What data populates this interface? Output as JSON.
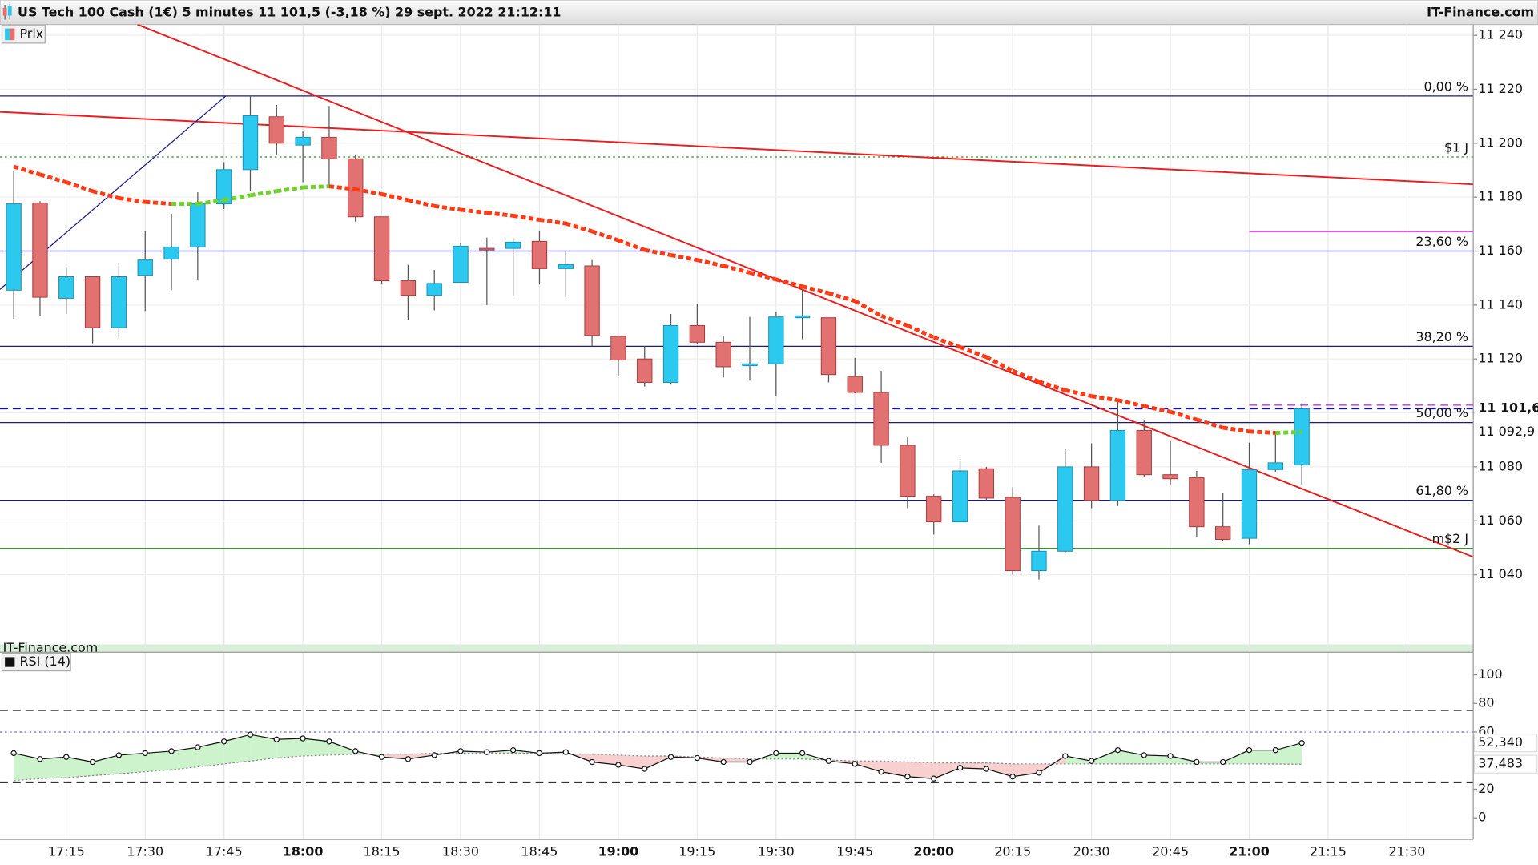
{
  "header": {
    "title": "US Tech 100 Cash (1€) 5 minutes 11 101,5 (-3,18 %) 29 sept. 2022 21:12:11",
    "brand": "IT-Finance.com"
  },
  "chart_data": [
    {
      "type": "candlestick",
      "watermark": "IT-Finance.com",
      "ylim": [
        11014.2,
        11244
      ],
      "yticks": [
        {
          "value": 11040,
          "label": "11 040"
        },
        {
          "value": 11060,
          "label": "11 060"
        },
        {
          "value": 11080,
          "label": "11 080"
        },
        {
          "value": 11100,
          "label": "11 100"
        },
        {
          "value": 11120,
          "label": "11 120"
        },
        {
          "value": 11140,
          "label": "11 140"
        },
        {
          "value": 11160,
          "label": "11 160"
        },
        {
          "value": 11180,
          "label": "11 180"
        },
        {
          "value": 11200,
          "label": "11 200"
        },
        {
          "value": 11220,
          "label": "11 220"
        },
        {
          "value": 11240,
          "label": "11 240"
        }
      ],
      "grid": true,
      "series": [
        {
          "name": "Prix",
          "up_color": "#2bc9ef",
          "down_color": "#e27272",
          "open": [
            11145.5,
            11177.8,
            11142.5,
            11150.5,
            11131.6,
            11151.0,
            11157.0,
            11161.5,
            11177.5,
            11190.2,
            11209.8,
            11199.3,
            11202.2,
            11194.2,
            11172.7,
            11149.0,
            11143.6,
            11148.4,
            11161.0,
            11161.0,
            11163.6,
            11153.5,
            11154.5,
            11128.4,
            11120.0,
            11111.3,
            11132.4,
            11126.2,
            11117.5,
            11118.2,
            11135.3,
            11135.3,
            11113.5,
            11107.6,
            11088.0,
            11069.1,
            11059.6,
            11079.3,
            11068.7,
            11041.5,
            11048.7,
            11080.0,
            11067.6,
            11093.5,
            11077.1,
            11076.0,
            11057.8,
            11053.5,
            11079.0,
            11080.7
          ],
          "high": [
            11189.5,
            11178.5,
            11154.0,
            11150.5,
            11155.6,
            11167.3,
            11173.8,
            11181.8,
            11193.0,
            11217.5,
            11214.2,
            11204.7,
            11213.8,
            11195.6,
            11172.7,
            11154.9,
            11153.0,
            11162.9,
            11165.0,
            11164.7,
            11167.6,
            11160.0,
            11156.7,
            11128.7,
            11124.7,
            11136.7,
            11140.4,
            11128.7,
            11135.6,
            11137.5,
            11145.5,
            11135.3,
            11120.4,
            11115.6,
            11090.9,
            11069.8,
            11082.9,
            11080.0,
            11072.4,
            11058.2,
            11086.5,
            11088.7,
            11104.7,
            11097.5,
            11089.8,
            11078.5,
            11070.2,
            11089.0,
            11093.0,
            11103.6
          ],
          "low": [
            11134.9,
            11136.0,
            11136.7,
            11125.8,
            11127.6,
            11137.8,
            11145.5,
            11149.5,
            11175.6,
            11182.2,
            11195.6,
            11185.5,
            11184.0,
            11170.9,
            11148.0,
            11134.5,
            11138.0,
            11148.4,
            11140.0,
            11143.3,
            11147.6,
            11143.0,
            11124.7,
            11113.5,
            11109.8,
            11110.5,
            11125.5,
            11113.1,
            11112.0,
            11106.2,
            11127.3,
            11111.3,
            11107.3,
            11081.5,
            11064.7,
            11054.9,
            11059.6,
            11067.6,
            11040.0,
            11038.2,
            11048.0,
            11064.7,
            11065.5,
            11076.4,
            11073.5,
            11053.8,
            11052.7,
            11051.3,
            11078.2,
            11073.5
          ],
          "close": [
            11177.5,
            11142.9,
            11150.5,
            11131.6,
            11150.5,
            11156.7,
            11161.5,
            11177.5,
            11190.2,
            11210.2,
            11200.0,
            11202.2,
            11194.2,
            11172.7,
            11149.0,
            11143.6,
            11148.0,
            11161.8,
            11160.4,
            11163.3,
            11153.5,
            11155.0,
            11128.7,
            11119.6,
            11111.3,
            11132.4,
            11126.2,
            11117.1,
            11118.2,
            11135.6,
            11136.0,
            11114.2,
            11107.6,
            11088.0,
            11069.1,
            11059.6,
            11078.5,
            11068.4,
            11041.5,
            11048.7,
            11080.0,
            11067.6,
            11093.5,
            11077.1,
            11075.6,
            11057.8,
            11053.1,
            11078.9,
            11081.5,
            11101.5
          ]
        },
        {
          "color_down": "#ff3a14",
          "color_up": "#6fd12a",
          "values": [
            11191.3,
            11188.4,
            11185.5,
            11182.2,
            11179.6,
            11178.2,
            11177.5,
            11177.5,
            11178.9,
            11180.7,
            11182.2,
            11183.6,
            11184.0,
            11182.9,
            11181.1,
            11178.9,
            11176.7,
            11175.3,
            11174.2,
            11173.1,
            11171.6,
            11170.2,
            11167.3,
            11164.0,
            11160.4,
            11158.5,
            11156.7,
            11154.5,
            11152.0,
            11149.5,
            11146.9,
            11144.4,
            11141.5,
            11136.0,
            11132.4,
            11128.0,
            11124.4,
            11120.7,
            11115.6,
            11111.6,
            11108.4,
            11106.2,
            11104.7,
            11102.5,
            11100.4,
            11097.5,
            11094.5,
            11093.1,
            11092.6,
            11092.9
          ]
        }
      ],
      "levels": [
        {
          "label": "0,00 %",
          "value": 11217.5,
          "color": "#1a1a80",
          "style": "solid"
        },
        {
          "label": "$1 J",
          "value": 11194.9,
          "color": "#228822",
          "style": "dotted"
        },
        {
          "label": "23,60 %",
          "value": 11160.0,
          "color": "#1a1a80",
          "style": "solid"
        },
        {
          "label": "38,20 %",
          "value": 11124.7,
          "color": "#1a1a80",
          "style": "solid"
        },
        {
          "label": "50,00 %",
          "value": 11096.4,
          "color": "#1a1a80",
          "style": "solid"
        },
        {
          "label": "61,80 %",
          "value": 11067.6,
          "color": "#1a1a80",
          "style": "solid"
        },
        {
          "label": "m$2 J",
          "value": 11049.8,
          "color": "#2a9a2a",
          "style": "solid"
        }
      ],
      "short_levels": [
        {
          "value": 11167.3,
          "color": "#cc22cc",
          "style": "solid"
        },
        {
          "value": 11102.9,
          "color": "#dd44ee",
          "style": "dashed"
        }
      ],
      "price_tags": [
        {
          "value": 11101.6,
          "label": "11 101,6",
          "color": "#0a0ad0",
          "line": "dashed"
        },
        {
          "value": 11092.9,
          "label": "11 092,9",
          "color": "#66c21a"
        }
      ]
    },
    {
      "type": "line",
      "categories": [
        null,
        null,
        "17:15",
        null,
        null,
        "17:30",
        null,
        null,
        "17:45",
        null,
        null,
        "18:00",
        null,
        null,
        "18:15",
        null,
        null,
        "18:30",
        null,
        null,
        "18:45",
        null,
        null,
        "19:00",
        null,
        null,
        "19:15",
        null,
        null,
        "19:30",
        null,
        null,
        "19:45",
        null,
        null,
        "20:00",
        null,
        null,
        "20:15",
        null,
        null,
        "20:30",
        null,
        null,
        "20:45",
        null,
        null,
        "21:00",
        null,
        null
      ],
      "xticks_beyond": [
        "21:15",
        "21:30"
      ],
      "ylim": [
        -15.1,
        115.8
      ],
      "yticks": [
        0,
        20,
        60,
        80,
        100
      ],
      "fill_above": "#cdf3cd",
      "fill_below": "#f8d0d0",
      "series": [
        {
          "name": "RSI (14)",
          "color": "#111111",
          "values": [
            45.2,
            41.1,
            42.5,
            39.0,
            43.8,
            45.2,
            46.6,
            49.3,
            53.4,
            58.2,
            54.8,
            55.5,
            53.4,
            46.6,
            42.5,
            41.1,
            43.8,
            46.6,
            45.9,
            47.3,
            45.2,
            45.9,
            39.0,
            37.0,
            34.2,
            42.5,
            41.8,
            39.0,
            39.0,
            45.2,
            45.2,
            39.7,
            37.7,
            32.2,
            28.8,
            27.4,
            34.9,
            34.2,
            28.8,
            31.5,
            43.2,
            39.7,
            47.3,
            43.8,
            43.2,
            39.0,
            39.0,
            47.3,
            47.3,
            52.34
          ]
        },
        {
          "color": "#888888",
          "values": [
            26.0,
            27.4,
            28.1,
            29.5,
            30.8,
            32.2,
            33.6,
            35.6,
            37.7,
            39.7,
            41.8,
            43.2,
            43.8,
            44.5,
            44.5,
            44.5,
            45.2,
            45.2,
            45.2,
            45.2,
            45.2,
            44.5,
            44.5,
            43.8,
            43.2,
            43.2,
            42.5,
            41.8,
            41.1,
            41.1,
            41.1,
            40.4,
            39.7,
            39.7,
            39.0,
            38.4,
            38.4,
            38.4,
            37.7,
            37.7,
            37.7,
            37.7,
            37.7,
            37.7,
            37.7,
            37.7,
            37.7,
            37.7,
            37.6,
            37.483
          ]
        }
      ],
      "levels": [
        {
          "value": 75,
          "color": "#333333",
          "style": "dashed"
        },
        {
          "value": 25,
          "color": "#333333",
          "style": "dashed"
        },
        {
          "value": 60,
          "color": "#6666ee",
          "style": "dotted"
        }
      ],
      "tags": [
        {
          "value": 52.34,
          "label": "52,340",
          "color": "#111111"
        },
        {
          "value": 37.483,
          "label": "37,483",
          "color": "#888888"
        }
      ]
    }
  ]
}
